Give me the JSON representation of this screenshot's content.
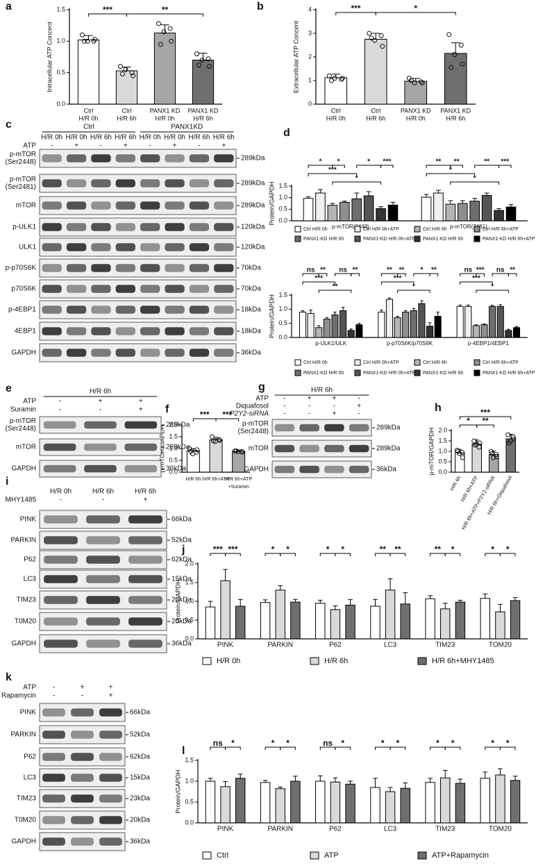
{
  "chart_data": [
    {
      "panel": "a",
      "type": "bar",
      "ylabel": "Intracellular ATP Concent",
      "categories": [
        [
          "Ctrl",
          "H/R 0h"
        ],
        [
          "Ctrl",
          "H/R 6h"
        ],
        [
          "PANX1 KD",
          "H/R 0h"
        ],
        [
          "PANX1 KD",
          "H/R 6h"
        ]
      ],
      "values": [
        1.02,
        0.53,
        1.13,
        0.7
      ],
      "errors": [
        0.07,
        0.06,
        0.13,
        0.11
      ],
      "points": [
        [
          1.1,
          1.0,
          1.0,
          1.03,
          1.0
        ],
        [
          0.6,
          0.5,
          0.55,
          0.45,
          0.48
        ],
        [
          1.28,
          1.2,
          1.15,
          1.0,
          0.95
        ],
        [
          0.8,
          0.72,
          0.7,
          0.6,
          0.62
        ]
      ],
      "colors": [
        "#ffffff",
        "#d9d9d9",
        "#a6a6a6",
        "#6f6f6f"
      ],
      "ylim": [
        0,
        1.5
      ],
      "yticks": [
        {
          "value": 0,
          "label": "0.0"
        },
        0.5,
        {
          "value": 1,
          "label": "1.0"
        },
        1.5
      ],
      "annotations": [
        "***",
        "**"
      ]
    },
    {
      "panel": "b",
      "type": "bar",
      "ylabel": "Extracellular ATP Concent",
      "categories": [
        [
          "Ctrl",
          "H/R 0h"
        ],
        [
          "Ctrl",
          "H/R 6h"
        ],
        [
          "PANX1 KD",
          "H/R 0h"
        ],
        [
          "PANX1 KD",
          "H/R 6h"
        ]
      ],
      "values": [
        1.12,
        2.75,
        0.97,
        2.15
      ],
      "errors": [
        0.15,
        0.25,
        0.12,
        0.45
      ],
      "points": [
        [
          1.2,
          1.05,
          1.1,
          1.1,
          1.0
        ],
        [
          3.0,
          2.9,
          2.7,
          2.45,
          2.8
        ],
        [
          1.1,
          0.95,
          0.9,
          0.9,
          1.0
        ],
        [
          2.95,
          2.5,
          2.1,
          1.7,
          1.55
        ]
      ],
      "colors": [
        "#ffffff",
        "#d9d9d9",
        "#a6a6a6",
        "#6f6f6f"
      ],
      "ylim": [
        0,
        4
      ],
      "yticks": [
        0,
        1,
        2,
        3,
        4
      ],
      "annotations": [
        "***",
        "*"
      ]
    },
    {
      "panel": "d",
      "type": "grouped_bar",
      "ylabel": "Protein/GAPDH",
      "categories": [
        "p-mTOR(2448)",
        "p-mTOR(2481)"
      ],
      "series": [
        {
          "name": "Ctrl H/R 0h",
          "color": "#ffffff",
          "values": [
            0.97,
            1.02
          ],
          "errors": [
            0.07,
            0.12
          ]
        },
        {
          "name": "Ctrl H/R 0h+ATP",
          "color": "#f0f0f0",
          "values": [
            1.2,
            1.2
          ],
          "errors": [
            0.15,
            0.12
          ]
        },
        {
          "name": "Ctrl H/R 6h",
          "color": "#b4b4b4",
          "values": [
            0.67,
            0.72
          ],
          "errors": [
            0.08,
            0.15
          ]
        },
        {
          "name": "Ctrl H/R 6h+ATP",
          "color": "#8f8f8f",
          "values": [
            0.8,
            0.75
          ],
          "errors": [
            0.05,
            0.12
          ]
        },
        {
          "name": "PANX1-KD H/R 0h",
          "color": "#6e6e6e",
          "values": [
            0.95,
            0.85
          ],
          "errors": [
            0.25,
            0.12
          ]
        },
        {
          "name": "PANX1-KD H/R 0h+ATP",
          "color": "#555555",
          "values": [
            1.08,
            1.1
          ],
          "errors": [
            0.18,
            0.1
          ]
        },
        {
          "name": "PANX1-KD H/R 6h",
          "color": "#333333",
          "values": [
            0.53,
            0.45
          ],
          "errors": [
            0.08,
            0.08
          ]
        },
        {
          "name": "PANX1-KD H/R 6h+ATP",
          "color": "#000000",
          "values": [
            0.68,
            0.6
          ],
          "errors": [
            0.12,
            0.1
          ]
        }
      ],
      "ylim": [
        0,
        1.5
      ],
      "yticks": [
        {
          "value": 0,
          "label": "0.0"
        },
        0.5,
        {
          "value": 1,
          "label": "1.0"
        },
        1.5
      ],
      "annotations": [
        "*",
        "*",
        "*",
        "***",
        "***",
        "*",
        "**",
        "**",
        "**",
        "***",
        "*",
        "*"
      ]
    },
    {
      "type": "grouped_bar",
      "ylabel": "Protein/GAPDH",
      "categories": [
        "p-ULK1/ULK",
        "p-p70S6K/p70S6K",
        "p-4EBP1/4EBP1"
      ],
      "series": [
        {
          "name": "Ctrl H/R 0h",
          "color": "#ffffff",
          "values": [
            0.9,
            0.9,
            1.1
          ],
          "errors": [
            0.05,
            0.07,
            0.05
          ]
        },
        {
          "name": "Ctrl H/R 0h+ATP",
          "color": "#f0f0f0",
          "values": [
            0.85,
            1.35,
            1.1
          ],
          "errors": [
            0.12,
            0.05,
            0.05
          ]
        },
        {
          "name": "Ctrl H/R 6h",
          "color": "#b4b4b4",
          "values": [
            0.35,
            0.7,
            0.42
          ],
          "errors": [
            0.07,
            0.05,
            0.03
          ]
        },
        {
          "name": "Ctrl H/R 6h+ATP",
          "color": "#8f8f8f",
          "values": [
            0.65,
            0.9,
            0.45
          ],
          "errors": [
            0.05,
            0.05,
            0.03
          ]
        },
        {
          "name": "PANX1-KD H/R 0h",
          "color": "#6e6e6e",
          "values": [
            0.8,
            0.95,
            1.1
          ],
          "errors": [
            0.1,
            0.08,
            0.04
          ]
        },
        {
          "name": "PANX1-KD H/R 0h+ATP",
          "color": "#555555",
          "values": [
            0.95,
            1.2,
            1.1
          ],
          "errors": [
            0.12,
            0.1,
            0.06
          ]
        },
        {
          "name": "PANX1-KD H/R 6h",
          "color": "#333333",
          "values": [
            0.25,
            0.4,
            0.25
          ],
          "errors": [
            0.05,
            0.12,
            0.04
          ]
        },
        {
          "name": "PANX1-KD H/R 6h+ATP",
          "color": "#000000",
          "values": [
            0.45,
            0.75,
            0.35
          ],
          "errors": [
            0.05,
            0.15,
            0.04
          ]
        }
      ],
      "ylim": [
        0,
        1.5
      ],
      "yticks": [
        {
          "value": 0,
          "label": "0.0"
        },
        0.5,
        {
          "value": 1,
          "label": "1.0"
        },
        1.5
      ],
      "annotations": [
        "ns",
        "**",
        "ns",
        "**",
        "***",
        "**",
        "**",
        "**",
        "*",
        "**",
        "***",
        "*",
        "ns",
        "***",
        "ns",
        "**",
        "***",
        "*"
      ]
    },
    {
      "panel": "f",
      "type": "bar",
      "ylabel": "p-mTOR/GAPDH",
      "categories": [
        [
          "H/R 6h"
        ],
        [
          "H/R 6h+ATP"
        ],
        [
          "H/R 6h+ATP",
          "+Suramin"
        ]
      ],
      "values": [
        0.9,
        1.37,
        0.88
      ],
      "errors": [
        0.1,
        0.1,
        0.03
      ],
      "points": [
        [
          1.0,
          0.85,
          0.78,
          0.95,
          0.88
        ],
        [
          1.5,
          1.38,
          1.3,
          1.35,
          1.33
        ],
        [
          0.9,
          0.88,
          0.87,
          0.85,
          0.9
        ]
      ],
      "colors": [
        "#ffffff",
        "#d9d9d9",
        "#a6a6a6"
      ],
      "ylim": [
        0,
        2
      ],
      "yticks": [
        {
          "value": 0,
          "label": "0.0"
        },
        0.5,
        {
          "value": 1,
          "label": "1.0"
        },
        1.5,
        {
          "value": 2,
          "label": "2.0"
        }
      ],
      "annotations": [
        "***",
        "***"
      ]
    },
    {
      "panel": "h",
      "type": "bar",
      "ylabel": "p-mTOR/GAPDH",
      "categories": [
        [
          "H/R 6h"
        ],
        [
          "H/R 6h+ATP"
        ],
        [
          "H/R 6h+ATP+P2Y2-siRNA"
        ],
        [
          "H/R 6h+Diquafosol"
        ]
      ],
      "values": [
        0.93,
        1.35,
        0.85,
        1.6
      ],
      "errors": [
        0.17,
        0.2,
        0.17,
        0.22
      ],
      "points": [
        [
          1.05,
          0.95,
          0.9,
          0.7,
          1.0
        ],
        [
          1.5,
          1.2,
          1.35,
          1.4,
          1.3
        ],
        [
          1.0,
          0.85,
          0.7,
          0.75,
          0.9
        ],
        [
          1.8,
          1.7,
          1.5,
          1.6,
          1.4
        ]
      ],
      "colors": [
        "#ffffff",
        "#d9d9d9",
        "#a6a6a6",
        "#6f6f6f"
      ],
      "ylim": [
        0,
        2
      ],
      "yticks": [
        {
          "value": 0,
          "label": "0.0"
        },
        0.5,
        {
          "value": 1,
          "label": "1.0"
        },
        1.5,
        {
          "value": 2,
          "label": "2.0"
        }
      ],
      "annotations": [
        "***",
        "*",
        "**"
      ]
    },
    {
      "panel": "j",
      "type": "grouped_bar",
      "ylabel": "Protein/GAPDH",
      "categories": [
        "PINK",
        "PARKIN",
        "P62",
        "LC3",
        "TIM23",
        "TOM20"
      ],
      "series": [
        {
          "name": "H/R 0h",
          "color": "#ffffff",
          "values": [
            0.85,
            0.97,
            0.95,
            0.87,
            1.07,
            1.08
          ],
          "errors": [
            0.15,
            0.07,
            0.08,
            0.18,
            0.08,
            0.12
          ]
        },
        {
          "name": "H/R 6h",
          "color": "#d9d9d9",
          "values": [
            1.55,
            1.3,
            0.78,
            1.3,
            0.8,
            0.72
          ],
          "errors": [
            0.3,
            0.12,
            0.1,
            0.3,
            0.15,
            0.2
          ]
        },
        {
          "name": "H/R 6h+MHY1485",
          "color": "#6f6f6f",
          "values": [
            0.87,
            0.98,
            0.9,
            0.93,
            0.98,
            1.02
          ],
          "errors": [
            0.18,
            0.07,
            0.15,
            0.3,
            0.05,
            0.08
          ]
        }
      ],
      "ylim": [
        0,
        2
      ],
      "yticks": [
        {
          "value": 0,
          "label": "0.0"
        },
        0.5,
        {
          "value": 1,
          "label": "1.0"
        },
        1.5,
        {
          "value": 2,
          "label": "2.0"
        }
      ],
      "annotations": [
        "***",
        "***",
        "*",
        "*",
        "*",
        "*",
        "**",
        "**",
        "**",
        "*",
        "*",
        "*"
      ]
    },
    {
      "panel": "l",
      "type": "grouped_bar",
      "ylabel": "Protein/GAPDH",
      "categories": [
        "PINK",
        "PARKIN",
        "P62",
        "LC3",
        "TIM23",
        "TOM20"
      ],
      "series": [
        {
          "name": "Ctrl",
          "color": "#ffffff",
          "values": [
            1.0,
            0.97,
            1.0,
            0.85,
            0.97,
            1.07
          ],
          "errors": [
            0.07,
            0.05,
            0.13,
            0.22,
            0.1,
            0.15
          ]
        },
        {
          "name": "ATP",
          "color": "#d9d9d9",
          "values": [
            0.87,
            0.82,
            0.98,
            0.75,
            1.08,
            1.15
          ],
          "errors": [
            0.12,
            0.04,
            0.1,
            0.1,
            0.18,
            0.15
          ]
        },
        {
          "name": "ATP+Rapamycin",
          "color": "#6f6f6f",
          "values": [
            1.07,
            1.0,
            0.93,
            0.83,
            0.95,
            1.02
          ],
          "errors": [
            0.1,
            0.12,
            0.07,
            0.13,
            0.1,
            0.1
          ]
        }
      ],
      "ylim": [
        0,
        1.5
      ],
      "yticks": [
        {
          "value": 0,
          "label": "0.0"
        },
        0.5,
        {
          "value": 1,
          "label": "1.0"
        },
        1.5
      ],
      "annotations": [
        "ns",
        "*",
        "*",
        "*",
        "ns",
        "*",
        "*",
        "*",
        "*",
        "*",
        "*",
        "*"
      ]
    }
  ],
  "blots": [
    {
      "panel": "c",
      "headers": [
        "Ctrl",
        "PANX1KD"
      ],
      "conditions": [
        "H/R 0h",
        "H/R 0h",
        "H/R 6h",
        "H/R 6h",
        "H/R 0h",
        "H/R 0h",
        "H/R 6h",
        "H/R 6h"
      ],
      "treatments": [
        {
          "name": "ATP",
          "signs": [
            "-",
            "+",
            "-",
            "+",
            "-",
            "+",
            "-",
            "+"
          ]
        }
      ],
      "rows": [
        {
          "label": [
            "p-mTOR",
            "(Ser2448)"
          ],
          "size": "289kDa"
        },
        {
          "label": [
            "p-mTOR",
            "(Ser2481)"
          ],
          "size": "289kDa"
        },
        {
          "label": [
            "mTOR"
          ],
          "size": "289kDa"
        },
        {
          "label": [
            "p-ULK1"
          ],
          "size": "120kDa"
        },
        {
          "label": [
            "ULK1"
          ],
          "size": "120kDa"
        },
        {
          "label": [
            "p-p70S6K"
          ],
          "size": "70kDa"
        },
        {
          "label": [
            "p70S6K"
          ],
          "size": "70kDa"
        },
        {
          "label": [
            "p-4EBP1"
          ],
          "size": "18kDa"
        },
        {
          "label": [
            "4EBP1"
          ],
          "size": "18kDa"
        },
        {
          "label": [
            "GAPDH"
          ],
          "size": "36kDa"
        }
      ]
    },
    {
      "panel": "e",
      "headers": [
        "H/R 6h"
      ],
      "treatments": [
        {
          "name": "ATP",
          "signs": [
            "-",
            "+",
            "+"
          ]
        },
        {
          "name": "Suramin",
          "signs": [
            "-",
            "-",
            "+"
          ]
        }
      ],
      "rows": [
        {
          "label": [
            "p-mTOR",
            "(Ser2448)"
          ],
          "size": "289kDa"
        },
        {
          "label": [
            "mTOR"
          ],
          "size": "289kDa"
        },
        {
          "label": [
            "GAPDH"
          ],
          "size": "36kDa"
        }
      ]
    },
    {
      "panel": "g",
      "headers": [
        "H/R 6h"
      ],
      "treatments": [
        {
          "name": "ATP",
          "signs": [
            "-",
            "+",
            "+",
            "-"
          ]
        },
        {
          "name": "Diquafosol",
          "signs": [
            "-",
            "-",
            "-",
            "+"
          ]
        },
        {
          "name": "P2Y2-siRNA",
          "signs": [
            "-",
            "-",
            "+",
            "-"
          ]
        }
      ],
      "rows": [
        {
          "label": [
            "p-mTOR",
            "(Ser2448)"
          ],
          "size": "289kDa"
        },
        {
          "label": [
            "mTOR"
          ],
          "size": "289kDa"
        },
        {
          "label": [
            "GAPDH"
          ],
          "size": "36kDa"
        }
      ]
    },
    {
      "panel": "i",
      "conditions": [
        "H/R 0h",
        "H/R 6h",
        "H/R 6h"
      ],
      "treatments": [
        {
          "name": "MHY1485",
          "signs": [
            "-",
            "-",
            "+"
          ]
        }
      ],
      "rows": [
        {
          "label": [
            "PINK"
          ],
          "size": "66kDa"
        },
        {
          "label": [
            "PARKIN"
          ],
          "size": "52kDa"
        },
        {
          "label": [
            "P62"
          ],
          "size": "62kDa"
        },
        {
          "label": [
            "LC3"
          ],
          "size": "15kDa"
        },
        {
          "label": [
            "TIM23"
          ],
          "size": "23kDa"
        },
        {
          "label": [
            "T0M20"
          ],
          "size": "20kDa"
        },
        {
          "label": [
            "GAPDH"
          ],
          "size": "36kDa"
        }
      ]
    },
    {
      "panel": "k",
      "treatments": [
        {
          "name": "ATP",
          "signs": [
            "-",
            "+",
            "+"
          ]
        },
        {
          "name": "Rapamycin",
          "signs": [
            "-",
            "-",
            "+"
          ]
        }
      ],
      "rows": [
        {
          "label": [
            "PINK"
          ],
          "size": "66kDa"
        },
        {
          "label": [
            "PARKIN"
          ],
          "size": "52kDa"
        },
        {
          "label": [
            "P62"
          ],
          "size": "62kDa"
        },
        {
          "label": [
            "LC3"
          ],
          "size": "15kDa"
        },
        {
          "label": [
            "TIM23"
          ],
          "size": "23kDa"
        },
        {
          "label": [
            "T0M20"
          ],
          "size": "20kDa"
        },
        {
          "label": [
            "GAPDH"
          ],
          "size": "36kDa"
        }
      ]
    }
  ]
}
